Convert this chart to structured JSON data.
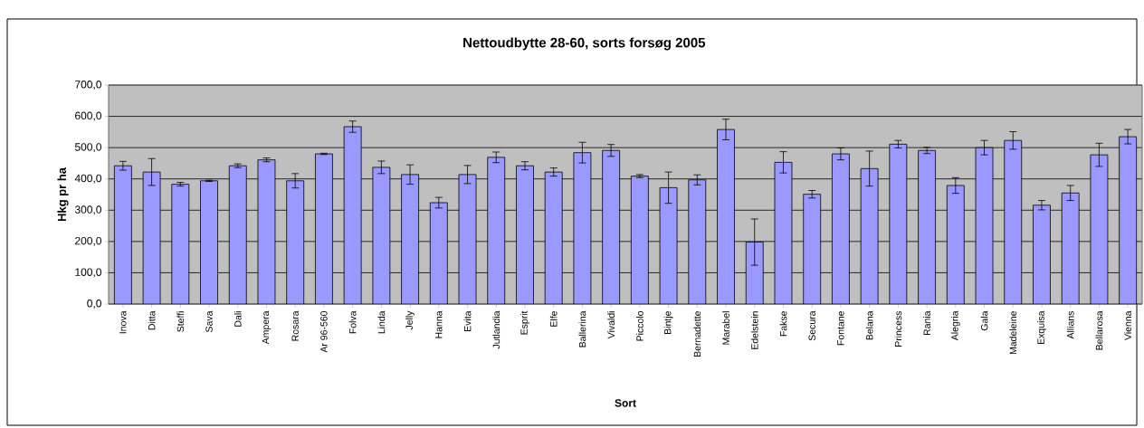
{
  "chart_data": {
    "type": "bar",
    "title": "Nettoudbytte 28-60, sorts forsøg 2005",
    "xlabel": "Sort",
    "ylabel": "Hkg pr ha",
    "categories": [
      "Inova",
      "Ditta",
      "Steffi",
      "Sava",
      "Dali",
      "Ampera",
      "Rosara",
      "Ar 96-560",
      "Folva",
      "Linda",
      "Jelly",
      "Hanna",
      "Evita",
      "Jutlandia",
      "Esprit",
      "Elfe",
      "Ballerina",
      "Vivaldi",
      "Piccolo",
      "Bintje",
      "Bernadette",
      "Marabel",
      "Edelstein",
      "Fakse",
      "Secura",
      "Fontane",
      "Belana",
      "Princess",
      "Rania",
      "Alegria",
      "Gala",
      "Madeleine",
      "Exquisa",
      "Allians",
      "Bellarosa",
      "Vienna"
    ],
    "values": [
      442,
      422,
      383,
      394,
      442,
      461,
      394,
      480,
      567,
      437,
      414,
      324,
      414,
      469,
      442,
      422,
      484,
      491,
      409,
      372,
      397,
      558,
      198,
      453,
      351,
      480,
      433,
      511,
      491,
      379,
      500,
      523,
      316,
      355,
      477,
      535
    ],
    "errors": [
      14,
      43,
      6,
      2,
      6,
      6,
      23,
      2,
      18,
      20,
      31,
      17,
      29,
      17,
      13,
      13,
      33,
      19,
      5,
      50,
      16,
      33,
      74,
      34,
      12,
      19,
      56,
      12,
      10,
      25,
      23,
      28,
      15,
      24,
      37,
      23
    ],
    "color": "#9999ff",
    "ylim": [
      0,
      700
    ],
    "yticks": [
      {
        "value": 0,
        "label": "0,0"
      },
      {
        "value": 100,
        "label": "100,0"
      },
      {
        "value": 200,
        "label": "200,0"
      },
      {
        "value": 300,
        "label": "300,0"
      },
      {
        "value": 400,
        "label": "400,0"
      },
      {
        "value": 500,
        "label": "500,0"
      },
      {
        "value": 600,
        "label": "600,0"
      },
      {
        "value": 700,
        "label": "700,0"
      }
    ],
    "grid": "y"
  }
}
